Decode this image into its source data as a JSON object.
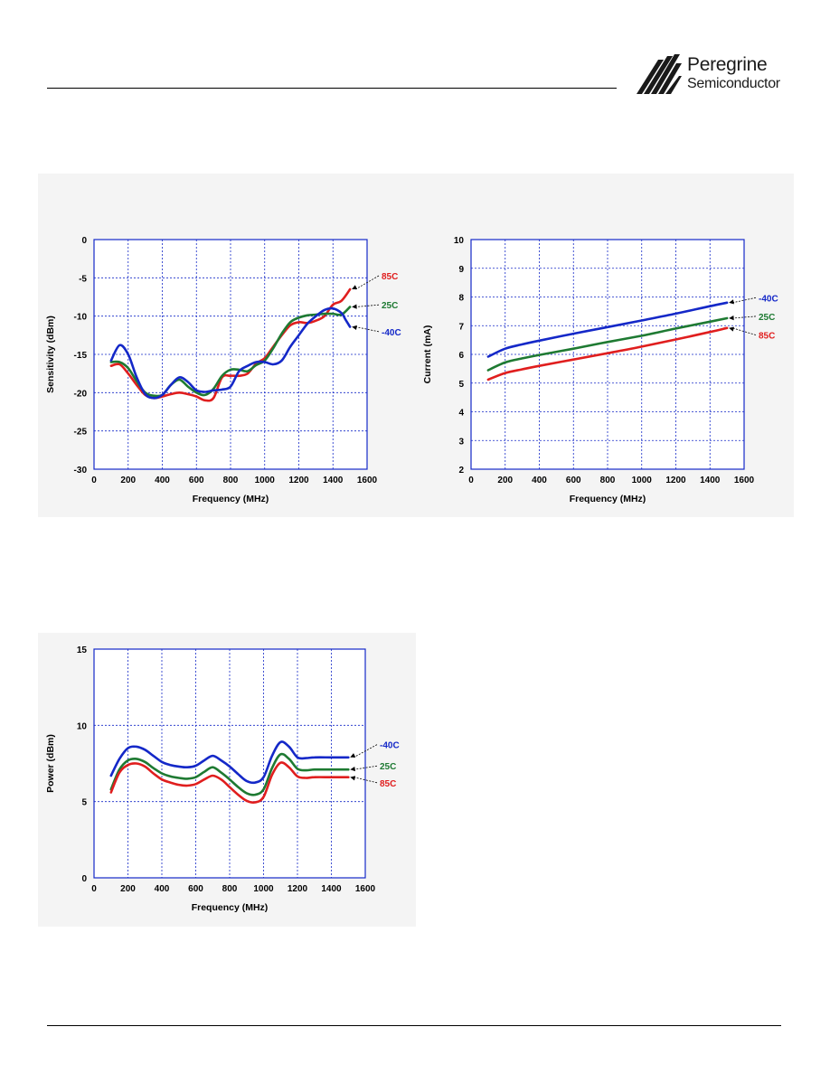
{
  "logo": {
    "name": "Peregrine",
    "sub": "Semiconductor",
    "mark": "peregrine-stripes-logo"
  },
  "colors": {
    "m40C": "#1428c8",
    "p25C": "#1e7a32",
    "p85C": "#e01e1e",
    "grid": "#1428c8",
    "panel": "#f4f4f4"
  },
  "chart_data": [
    {
      "type": "line",
      "xlabel": "Frequency (MHz)",
      "ylabel": "Sensitivity (dBm)",
      "xlim": [
        0,
        1600
      ],
      "ylim": [
        -30,
        0
      ],
      "xticks": [
        0,
        200,
        400,
        600,
        800,
        1000,
        1200,
        1400,
        1600
      ],
      "yticks": [
        0,
        -5,
        -10,
        -15,
        -20,
        -25,
        -30
      ],
      "grid": true,
      "series": [
        {
          "name": "85C",
          "color": "#e01e1e",
          "label_y": -5.2,
          "x": [
            100,
            150,
            200,
            250,
            300,
            350,
            400,
            450,
            500,
            550,
            600,
            650,
            700,
            750,
            800,
            850,
            900,
            950,
            1000,
            1050,
            1100,
            1150,
            1200,
            1250,
            1300,
            1350,
            1400,
            1450,
            1500
          ],
          "y": [
            -16.5,
            -16.3,
            -17.5,
            -19.0,
            -20.3,
            -20.7,
            -20.5,
            -20.2,
            -20.0,
            -20.2,
            -20.5,
            -21.0,
            -20.7,
            -18.0,
            -17.8,
            -17.8,
            -17.5,
            -16.2,
            -15.5,
            -14.0,
            -12.5,
            -11.2,
            -10.8,
            -10.9,
            -10.6,
            -10.0,
            -8.5,
            -8.0,
            -6.5
          ]
        },
        {
          "name": "25C",
          "color": "#1e7a32",
          "label_y": -9.0,
          "x": [
            100,
            150,
            200,
            250,
            300,
            350,
            400,
            450,
            500,
            550,
            600,
            650,
            700,
            750,
            800,
            850,
            900,
            950,
            1000,
            1050,
            1100,
            1150,
            1200,
            1250,
            1300,
            1350,
            1400,
            1450,
            1500
          ],
          "y": [
            -16.0,
            -16.0,
            -16.8,
            -18.5,
            -20.0,
            -20.4,
            -20.3,
            -19.0,
            -18.3,
            -19.2,
            -20.0,
            -20.3,
            -19.5,
            -17.8,
            -17.0,
            -17.0,
            -17.2,
            -16.4,
            -15.8,
            -14.2,
            -12.3,
            -10.8,
            -10.2,
            -9.9,
            -9.8,
            -9.7,
            -9.7,
            -9.8,
            -8.8
          ]
        },
        {
          "name": "-40C",
          "color": "#1428c8",
          "label_y": -12.5,
          "x": [
            100,
            150,
            200,
            250,
            300,
            350,
            400,
            450,
            500,
            550,
            600,
            650,
            700,
            750,
            800,
            850,
            900,
            950,
            1000,
            1050,
            1100,
            1150,
            1200,
            1250,
            1300,
            1350,
            1400,
            1450,
            1475,
            1500
          ],
          "y": [
            -15.8,
            -13.8,
            -15.0,
            -18.0,
            -20.2,
            -20.7,
            -20.3,
            -19.0,
            -18.0,
            -18.6,
            -19.7,
            -19.9,
            -19.7,
            -19.6,
            -19.2,
            -17.2,
            -16.5,
            -16.0,
            -16.0,
            -16.3,
            -15.8,
            -14.0,
            -12.5,
            -11.0,
            -10.0,
            -9.2,
            -9.0,
            -9.6,
            -10.5,
            -11.4
          ]
        }
      ]
    },
    {
      "type": "line",
      "xlabel": "Frequency (MHz)",
      "ylabel": "Current (mA)",
      "xlim": [
        0,
        1600
      ],
      "ylim": [
        2,
        10
      ],
      "xticks": [
        0,
        200,
        400,
        600,
        800,
        1000,
        1200,
        1400,
        1600
      ],
      "yticks": [
        2,
        3,
        4,
        5,
        6,
        7,
        8,
        9,
        10
      ],
      "grid": true,
      "series": [
        {
          "name": "-40C",
          "color": "#1428c8",
          "label_y": 7.85,
          "x": [
            100,
            200,
            300,
            400,
            600,
            800,
            1000,
            1200,
            1400,
            1500
          ],
          "y": [
            5.92,
            6.2,
            6.35,
            6.48,
            6.72,
            6.95,
            7.18,
            7.42,
            7.68,
            7.8
          ]
        },
        {
          "name": "25C",
          "color": "#1e7a32",
          "label_y": 7.2,
          "x": [
            100,
            200,
            300,
            400,
            600,
            800,
            1000,
            1200,
            1400,
            1500
          ],
          "y": [
            5.45,
            5.72,
            5.86,
            5.98,
            6.2,
            6.43,
            6.65,
            6.9,
            7.14,
            7.26
          ]
        },
        {
          "name": "85C",
          "color": "#e01e1e",
          "label_y": 6.55,
          "x": [
            100,
            200,
            300,
            400,
            600,
            800,
            1000,
            1200,
            1400,
            1500
          ],
          "y": [
            5.12,
            5.35,
            5.48,
            5.6,
            5.82,
            6.04,
            6.27,
            6.52,
            6.78,
            6.92
          ]
        }
      ]
    },
    {
      "type": "line",
      "xlabel": "Frequency (MHz)",
      "ylabel": "Power (dBm)",
      "xlim": [
        0,
        1600
      ],
      "ylim": [
        0,
        15
      ],
      "xticks": [
        0,
        200,
        400,
        600,
        800,
        1000,
        1200,
        1400,
        1600
      ],
      "yticks": [
        0,
        5,
        10,
        15
      ],
      "grid": true,
      "series": [
        {
          "name": "-40C",
          "color": "#1428c8",
          "label_y": 8.5,
          "x": [
            100,
            150,
            200,
            250,
            300,
            350,
            400,
            450,
            500,
            550,
            600,
            650,
            700,
            750,
            800,
            850,
            900,
            950,
            1000,
            1050,
            1100,
            1150,
            1200,
            1250,
            1300,
            1400,
            1500
          ],
          "y": [
            6.7,
            7.8,
            8.5,
            8.6,
            8.4,
            8.0,
            7.6,
            7.4,
            7.3,
            7.25,
            7.35,
            7.7,
            8.0,
            7.7,
            7.3,
            6.8,
            6.35,
            6.25,
            6.6,
            8.0,
            8.9,
            8.6,
            7.9,
            7.85,
            7.9,
            7.9,
            7.9
          ]
        },
        {
          "name": "25C",
          "color": "#1e7a32",
          "label_y": 7.1,
          "x": [
            100,
            150,
            200,
            250,
            300,
            350,
            400,
            450,
            500,
            550,
            600,
            650,
            700,
            750,
            800,
            850,
            900,
            950,
            1000,
            1050,
            1100,
            1150,
            1200,
            1250,
            1300,
            1400,
            1500
          ],
          "y": [
            5.8,
            7.1,
            7.7,
            7.8,
            7.6,
            7.2,
            6.85,
            6.65,
            6.55,
            6.5,
            6.6,
            6.95,
            7.25,
            6.9,
            6.45,
            5.95,
            5.55,
            5.45,
            5.8,
            7.2,
            8.1,
            7.8,
            7.15,
            7.05,
            7.1,
            7.1,
            7.1
          ]
        },
        {
          "name": "85C",
          "color": "#e01e1e",
          "label_y": 6.0,
          "x": [
            100,
            150,
            200,
            250,
            300,
            350,
            400,
            450,
            500,
            550,
            600,
            650,
            700,
            750,
            800,
            850,
            900,
            950,
            1000,
            1050,
            1100,
            1150,
            1200,
            1250,
            1300,
            1400,
            1500
          ],
          "y": [
            5.6,
            6.9,
            7.4,
            7.5,
            7.3,
            6.85,
            6.45,
            6.25,
            6.1,
            6.05,
            6.15,
            6.45,
            6.7,
            6.45,
            5.95,
            5.45,
            5.05,
            4.95,
            5.3,
            6.75,
            7.55,
            7.25,
            6.65,
            6.55,
            6.6,
            6.6,
            6.6
          ]
        }
      ]
    }
  ]
}
